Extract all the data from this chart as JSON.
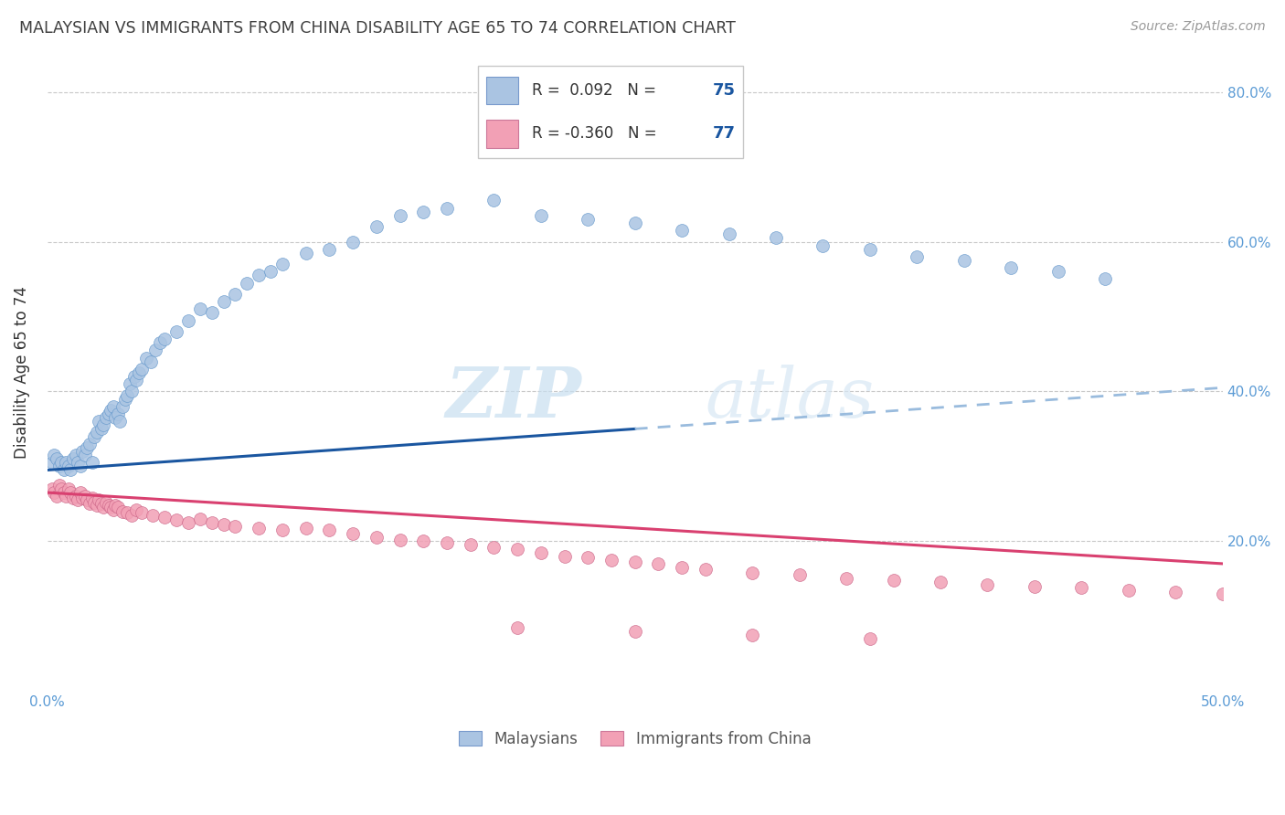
{
  "title": "MALAYSIAN VS IMMIGRANTS FROM CHINA DISABILITY AGE 65 TO 74 CORRELATION CHART",
  "source": "Source: ZipAtlas.com",
  "ylabel": "Disability Age 65 to 74",
  "xlim": [
    0.0,
    0.5
  ],
  "ylim": [
    0.0,
    0.85
  ],
  "xticks": [
    0.0,
    0.5
  ],
  "xtick_labels": [
    "0.0%",
    "50.0%"
  ],
  "yticks": [
    0.2,
    0.4,
    0.6,
    0.8
  ],
  "ytick_labels": [
    "20.0%",
    "40.0%",
    "60.0%",
    "80.0%"
  ],
  "blue_color": "#aac4e2",
  "blue_line_color": "#1a56a0",
  "pink_color": "#f2a0b5",
  "pink_line_color": "#d94070",
  "bottom_legend_1": "Malaysians",
  "bottom_legend_2": "Immigrants from China",
  "R_blue": 0.092,
  "N_blue": 75,
  "R_pink": -0.36,
  "N_pink": 77,
  "watermark_zip": "ZIP",
  "watermark_atlas": "atlas",
  "blue_intercept": 0.295,
  "blue_slope": 0.22,
  "pink_intercept": 0.265,
  "pink_slope": -0.19,
  "blue_scatter_x": [
    0.002,
    0.003,
    0.004,
    0.005,
    0.006,
    0.007,
    0.008,
    0.009,
    0.01,
    0.011,
    0.012,
    0.013,
    0.014,
    0.015,
    0.016,
    0.017,
    0.018,
    0.019,
    0.02,
    0.021,
    0.022,
    0.023,
    0.024,
    0.025,
    0.026,
    0.027,
    0.028,
    0.029,
    0.03,
    0.031,
    0.032,
    0.033,
    0.034,
    0.035,
    0.036,
    0.037,
    0.038,
    0.039,
    0.04,
    0.042,
    0.044,
    0.046,
    0.048,
    0.05,
    0.055,
    0.06,
    0.065,
    0.07,
    0.075,
    0.08,
    0.085,
    0.09,
    0.095,
    0.1,
    0.11,
    0.12,
    0.13,
    0.14,
    0.15,
    0.16,
    0.17,
    0.19,
    0.21,
    0.23,
    0.25,
    0.27,
    0.29,
    0.31,
    0.33,
    0.35,
    0.37,
    0.39,
    0.41,
    0.43,
    0.45
  ],
  "blue_scatter_y": [
    0.305,
    0.315,
    0.31,
    0.3,
    0.305,
    0.295,
    0.305,
    0.3,
    0.295,
    0.31,
    0.315,
    0.305,
    0.3,
    0.32,
    0.315,
    0.325,
    0.33,
    0.305,
    0.34,
    0.345,
    0.36,
    0.35,
    0.355,
    0.365,
    0.37,
    0.375,
    0.38,
    0.365,
    0.37,
    0.36,
    0.38,
    0.39,
    0.395,
    0.41,
    0.4,
    0.42,
    0.415,
    0.425,
    0.43,
    0.445,
    0.44,
    0.455,
    0.465,
    0.47,
    0.48,
    0.495,
    0.51,
    0.505,
    0.52,
    0.53,
    0.545,
    0.555,
    0.56,
    0.57,
    0.585,
    0.59,
    0.6,
    0.62,
    0.635,
    0.64,
    0.645,
    0.655,
    0.635,
    0.63,
    0.625,
    0.615,
    0.61,
    0.605,
    0.595,
    0.59,
    0.58,
    0.575,
    0.565,
    0.56,
    0.55
  ],
  "pink_scatter_x": [
    0.002,
    0.003,
    0.004,
    0.005,
    0.006,
    0.007,
    0.008,
    0.009,
    0.01,
    0.011,
    0.012,
    0.013,
    0.014,
    0.015,
    0.016,
    0.017,
    0.018,
    0.019,
    0.02,
    0.021,
    0.022,
    0.023,
    0.024,
    0.025,
    0.026,
    0.027,
    0.028,
    0.029,
    0.03,
    0.032,
    0.034,
    0.036,
    0.038,
    0.04,
    0.045,
    0.05,
    0.055,
    0.06,
    0.065,
    0.07,
    0.075,
    0.08,
    0.09,
    0.1,
    0.11,
    0.12,
    0.13,
    0.14,
    0.15,
    0.16,
    0.17,
    0.18,
    0.19,
    0.2,
    0.21,
    0.22,
    0.23,
    0.24,
    0.25,
    0.26,
    0.27,
    0.28,
    0.3,
    0.32,
    0.34,
    0.36,
    0.38,
    0.4,
    0.42,
    0.44,
    0.46,
    0.48,
    0.5,
    0.2,
    0.25,
    0.3,
    0.35
  ],
  "pink_scatter_y": [
    0.27,
    0.265,
    0.26,
    0.275,
    0.27,
    0.265,
    0.26,
    0.27,
    0.265,
    0.258,
    0.26,
    0.255,
    0.265,
    0.258,
    0.26,
    0.255,
    0.25,
    0.258,
    0.252,
    0.248,
    0.255,
    0.25,
    0.245,
    0.252,
    0.248,
    0.245,
    0.242,
    0.248,
    0.245,
    0.24,
    0.238,
    0.235,
    0.242,
    0.238,
    0.235,
    0.232,
    0.228,
    0.225,
    0.23,
    0.225,
    0.222,
    0.22,
    0.218,
    0.215,
    0.218,
    0.215,
    0.21,
    0.205,
    0.202,
    0.2,
    0.198,
    0.195,
    0.192,
    0.19,
    0.185,
    0.18,
    0.178,
    0.175,
    0.172,
    0.17,
    0.165,
    0.162,
    0.158,
    0.155,
    0.15,
    0.148,
    0.145,
    0.142,
    0.14,
    0.138,
    0.135,
    0.132,
    0.13,
    0.085,
    0.08,
    0.075,
    0.07
  ]
}
